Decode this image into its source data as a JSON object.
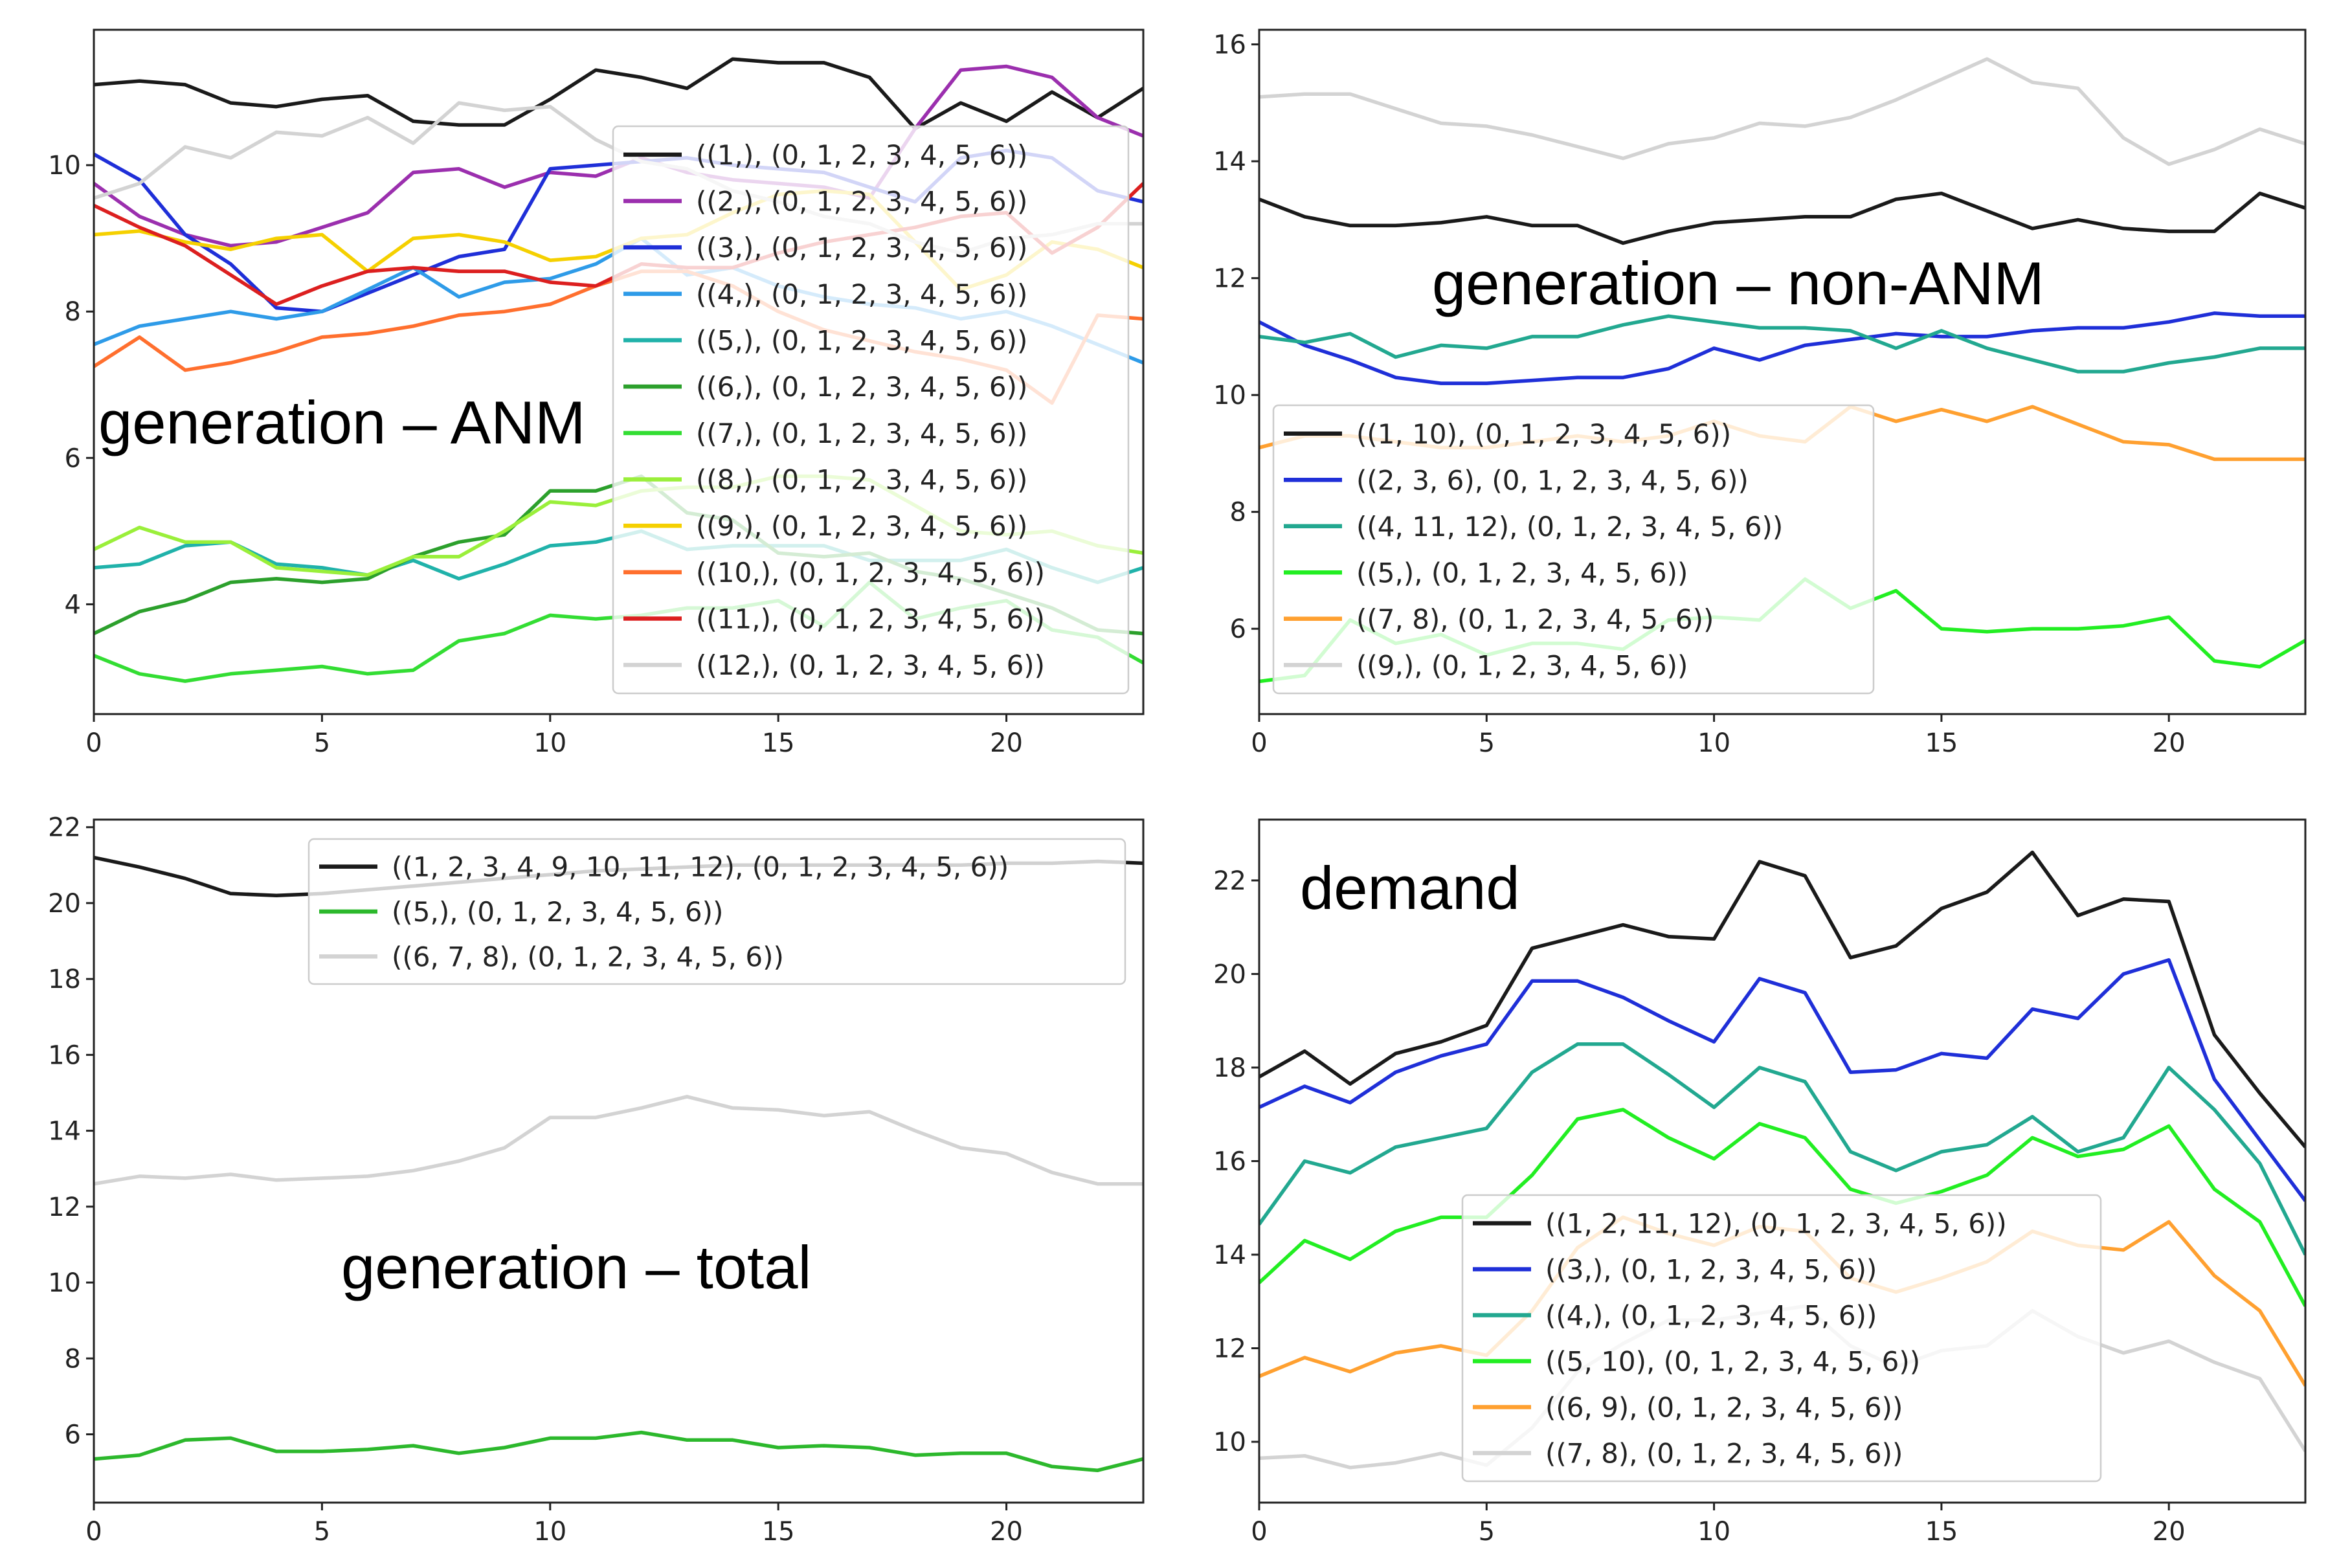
{
  "chart_data": [
    {
      "type": "line",
      "title": "",
      "annotation": "generation – ANM",
      "xlabel": "",
      "ylabel": "",
      "xlim": [
        0,
        23
      ],
      "ylim": [
        2.5,
        11.85
      ],
      "xticks": [
        0,
        5,
        10,
        15,
        20
      ],
      "yticks": [
        4,
        6,
        8,
        10
      ],
      "grid": false,
      "legend_placement": "right",
      "x": [
        0,
        1,
        2,
        3,
        4,
        5,
        6,
        7,
        8,
        9,
        10,
        11,
        12,
        13,
        14,
        15,
        16,
        17,
        18,
        19,
        20,
        21,
        22,
        23
      ],
      "series": [
        {
          "name": "((1,), (0, 1, 2, 3, 4, 5, 6))",
          "color": "#1a1a1a",
          "values": [
            11.1,
            11.15,
            11.1,
            10.85,
            10.8,
            10.9,
            10.95,
            10.6,
            10.55,
            10.55,
            10.9,
            11.3,
            11.2,
            11.05,
            11.45,
            11.4,
            11.4,
            11.2,
            10.5,
            10.85,
            10.6,
            11.0,
            10.65,
            11.05
          ]
        },
        {
          "name": "((2,), (0, 1, 2, 3, 4, 5, 6))",
          "color": "#9b2fae",
          "values": [
            9.75,
            9.3,
            9.05,
            8.9,
            8.95,
            9.15,
            9.35,
            9.9,
            9.95,
            9.7,
            9.9,
            9.85,
            10.1,
            9.9,
            9.8,
            9.75,
            9.7,
            9.55,
            10.5,
            11.3,
            11.35,
            11.2,
            10.65,
            10.4
          ]
        },
        {
          "name": "((3,), (0, 1, 2, 3, 4, 5, 6))",
          "color": "#1f2fd8",
          "values": [
            10.15,
            9.8,
            9.05,
            8.65,
            8.05,
            8.0,
            8.25,
            8.5,
            8.75,
            8.85,
            9.95,
            10.0,
            10.05,
            10.1,
            10.0,
            9.95,
            9.9,
            9.7,
            9.5,
            10.1,
            10.2,
            10.1,
            9.65,
            9.5
          ]
        },
        {
          "name": "((4,), (0, 1, 2, 3, 4, 5, 6))",
          "color": "#2e9be8",
          "values": [
            7.55,
            7.8,
            7.9,
            8.0,
            7.9,
            8.0,
            8.3,
            8.6,
            8.2,
            8.4,
            8.45,
            8.65,
            9.0,
            8.5,
            8.6,
            8.35,
            8.2,
            8.1,
            8.05,
            7.9,
            8.0,
            7.8,
            7.55,
            7.3
          ]
        },
        {
          "name": "((5,), (0, 1, 2, 3, 4, 5, 6))",
          "color": "#20b2aa",
          "values": [
            4.5,
            4.55,
            4.8,
            4.85,
            4.55,
            4.5,
            4.4,
            4.6,
            4.35,
            4.55,
            4.8,
            4.85,
            5.0,
            4.75,
            4.8,
            4.8,
            4.8,
            4.6,
            4.6,
            4.6,
            4.75,
            4.5,
            4.3,
            4.5
          ]
        },
        {
          "name": "((6,), (0, 1, 2, 3, 4, 5, 6))",
          "color": "#2ca02c",
          "values": [
            3.6,
            3.9,
            4.05,
            4.3,
            4.35,
            4.3,
            4.35,
            4.65,
            4.85,
            4.95,
            5.55,
            5.55,
            5.75,
            5.25,
            5.15,
            4.7,
            4.65,
            4.7,
            4.45,
            4.35,
            4.15,
            3.95,
            3.65,
            3.6
          ]
        },
        {
          "name": "((7,), (0, 1, 2, 3, 4, 5, 6))",
          "color": "#33dd33",
          "values": [
            3.3,
            3.05,
            2.95,
            3.05,
            3.1,
            3.15,
            3.05,
            3.1,
            3.5,
            3.6,
            3.85,
            3.8,
            3.85,
            3.95,
            3.95,
            4.05,
            3.7,
            4.3,
            3.8,
            3.95,
            4.05,
            3.65,
            3.55,
            3.2
          ]
        },
        {
          "name": "((8,), (0, 1, 2, 3, 4, 5, 6))",
          "color": "#9aef3a",
          "values": [
            4.75,
            5.05,
            4.85,
            4.85,
            4.5,
            4.45,
            4.4,
            4.65,
            4.65,
            5.0,
            5.4,
            5.35,
            5.55,
            5.6,
            5.6,
            5.75,
            5.75,
            5.7,
            5.35,
            5.0,
            4.95,
            5.0,
            4.8,
            4.7
          ]
        },
        {
          "name": "((9,), (0, 1, 2, 3, 4, 5, 6))",
          "color": "#f5d000",
          "values": [
            9.05,
            9.1,
            8.95,
            8.85,
            9.0,
            9.05,
            8.55,
            9.0,
            9.05,
            8.95,
            8.7,
            8.75,
            9.0,
            9.05,
            9.35,
            9.6,
            9.65,
            9.6,
            8.95,
            8.3,
            8.5,
            8.95,
            8.85,
            8.6
          ]
        },
        {
          "name": "((10,), (0, 1, 2, 3, 4, 5, 6))",
          "color": "#ff6f2e",
          "values": [
            7.25,
            7.65,
            7.2,
            7.3,
            7.45,
            7.65,
            7.7,
            7.8,
            7.95,
            8.0,
            8.1,
            8.35,
            8.55,
            8.55,
            8.35,
            8.0,
            7.75,
            7.6,
            7.45,
            7.35,
            7.2,
            6.75,
            7.95,
            7.9
          ]
        },
        {
          "name": "((11,), (0, 1, 2, 3, 4, 5, 6))",
          "color": "#dc1f1f",
          "values": [
            9.45,
            9.15,
            8.9,
            8.5,
            8.1,
            8.35,
            8.55,
            8.6,
            8.55,
            8.55,
            8.4,
            8.35,
            8.65,
            8.6,
            8.6,
            8.8,
            8.95,
            9.05,
            9.15,
            9.3,
            9.35,
            8.8,
            9.15,
            9.75
          ]
        },
        {
          "name": "((12,), (0, 1, 2, 3, 4, 5, 6))",
          "color": "#d3d3d3",
          "values": [
            9.55,
            9.75,
            10.25,
            10.1,
            10.45,
            10.4,
            10.65,
            10.3,
            10.85,
            10.75,
            10.8,
            10.35,
            10.05,
            9.95,
            9.65,
            9.5,
            9.3,
            9.2,
            8.95,
            8.8,
            9.0,
            9.05,
            9.2,
            9.2
          ]
        }
      ]
    },
    {
      "type": "line",
      "title": "",
      "annotation": "generation – non-ANM",
      "xlabel": "",
      "ylabel": "",
      "xlim": [
        0,
        23
      ],
      "ylim": [
        4.54,
        16.25
      ],
      "xticks": [
        0,
        5,
        10,
        15,
        20
      ],
      "yticks": [
        6,
        8,
        10,
        12,
        14,
        16
      ],
      "grid": false,
      "legend_placement": "lower-left",
      "x": [
        0,
        1,
        2,
        3,
        4,
        5,
        6,
        7,
        8,
        9,
        10,
        11,
        12,
        13,
        14,
        15,
        16,
        17,
        18,
        19,
        20,
        21,
        22,
        23
      ],
      "series": [
        {
          "name": "((1, 10), (0, 1, 2, 3, 4, 5, 6))",
          "color": "#1a1a1a",
          "values": [
            13.35,
            13.05,
            12.9,
            12.9,
            12.95,
            13.05,
            12.9,
            12.9,
            12.6,
            12.8,
            12.95,
            13.0,
            13.05,
            13.05,
            13.35,
            13.45,
            13.15,
            12.85,
            13.0,
            12.85,
            12.8,
            12.8,
            13.45,
            13.2
          ]
        },
        {
          "name": "((2, 3, 6), (0, 1, 2, 3, 4, 5, 6))",
          "color": "#1f2fd8",
          "values": [
            11.25,
            10.85,
            10.6,
            10.3,
            10.2,
            10.2,
            10.25,
            10.3,
            10.3,
            10.45,
            10.8,
            10.6,
            10.85,
            10.95,
            11.05,
            11.0,
            11.0,
            11.1,
            11.15,
            11.15,
            11.25,
            11.4,
            11.35,
            11.35
          ]
        },
        {
          "name": "((4, 11, 12), (0, 1, 2, 3, 4, 5, 6))",
          "color": "#22a890",
          "values": [
            11.0,
            10.9,
            11.05,
            10.65,
            10.85,
            10.8,
            11.0,
            11.0,
            11.2,
            11.35,
            11.25,
            11.15,
            11.15,
            11.1,
            10.8,
            11.1,
            10.8,
            10.6,
            10.4,
            10.4,
            10.55,
            10.65,
            10.8,
            10.8
          ]
        },
        {
          "name": "((5,), (0, 1, 2, 3, 4, 5, 6))",
          "color": "#22ee22",
          "values": [
            5.1,
            5.2,
            6.15,
            5.75,
            5.9,
            5.55,
            5.75,
            5.75,
            5.65,
            6.15,
            6.2,
            6.15,
            6.85,
            6.35,
            6.65,
            6.0,
            5.95,
            6.0,
            6.0,
            6.05,
            6.2,
            5.45,
            5.35,
            5.8
          ]
        },
        {
          "name": "((7, 8), (0, 1, 2, 3, 4, 5, 6))",
          "color": "#ffa030",
          "values": [
            9.1,
            9.3,
            9.3,
            9.2,
            9.1,
            9.1,
            9.2,
            9.3,
            9.2,
            9.3,
            9.55,
            9.3,
            9.2,
            9.8,
            9.55,
            9.75,
            9.55,
            9.8,
            9.5,
            9.2,
            9.15,
            8.9,
            8.9,
            8.9
          ]
        },
        {
          "name": "((9,), (0, 1, 2, 3, 4, 5, 6))",
          "color": "#d3d3d3",
          "values": [
            15.1,
            15.15,
            15.15,
            14.9,
            14.65,
            14.6,
            14.45,
            14.25,
            14.05,
            14.3,
            14.4,
            14.65,
            14.6,
            14.75,
            15.05,
            15.4,
            15.75,
            15.35,
            15.25,
            14.4,
            13.95,
            14.2,
            14.55,
            14.3
          ]
        }
      ]
    },
    {
      "type": "line",
      "title": "",
      "annotation": "generation – total",
      "xlabel": "",
      "ylabel": "",
      "xlim": [
        0,
        23
      ],
      "ylim": [
        4.2,
        22.2
      ],
      "xticks": [
        0,
        5,
        10,
        15,
        20
      ],
      "yticks": [
        6,
        8,
        10,
        12,
        14,
        16,
        18,
        20,
        22
      ],
      "grid": false,
      "legend_placement": "upper-right",
      "x": [
        0,
        1,
        2,
        3,
        4,
        5,
        6,
        7,
        8,
        9,
        10,
        11,
        12,
        13,
        14,
        15,
        16,
        17,
        18,
        19,
        20,
        21,
        22,
        23
      ],
      "series": [
        {
          "name": "((1, 2, 3, 4, 9, 10, 11, 12), (0, 1, 2, 3, 4, 5, 6))",
          "color": "#1a1a1a",
          "values": [
            21.2,
            20.95,
            20.65,
            20.25,
            20.2,
            20.25,
            20.35,
            20.45,
            20.55,
            20.65,
            20.75,
            20.85,
            20.9,
            20.95,
            21.0,
            21.0,
            21.0,
            21.0,
            21.0,
            21.0,
            21.05,
            21.05,
            21.1,
            21.05
          ]
        },
        {
          "name": "((5,), (0, 1, 2, 3, 4, 5, 6))",
          "color": "#2cb82c",
          "values": [
            5.35,
            5.45,
            5.85,
            5.9,
            5.55,
            5.55,
            5.6,
            5.7,
            5.5,
            5.65,
            5.9,
            5.9,
            6.05,
            5.85,
            5.85,
            5.65,
            5.7,
            5.65,
            5.45,
            5.5,
            5.5,
            5.15,
            5.05,
            5.35
          ]
        },
        {
          "name": "((6, 7, 8), (0, 1, 2, 3, 4, 5, 6))",
          "color": "#d3d3d3",
          "values": [
            12.6,
            12.8,
            12.75,
            12.85,
            12.7,
            12.75,
            12.8,
            12.95,
            13.2,
            13.55,
            14.35,
            14.35,
            14.6,
            14.9,
            14.6,
            14.55,
            14.4,
            14.5,
            14.0,
            13.55,
            13.4,
            12.9,
            12.6,
            12.6
          ]
        }
      ]
    },
    {
      "type": "line",
      "title": "",
      "annotation": "demand",
      "xlabel": "",
      "ylabel": "",
      "xlim": [
        0,
        23
      ],
      "ylim": [
        8.7,
        23.3
      ],
      "xticks": [
        0,
        5,
        10,
        15,
        20
      ],
      "yticks": [
        10,
        12,
        14,
        16,
        18,
        20,
        22
      ],
      "grid": false,
      "legend_placement": "lower-center",
      "x": [
        0,
        1,
        2,
        3,
        4,
        5,
        6,
        7,
        8,
        9,
        10,
        11,
        12,
        13,
        14,
        15,
        16,
        17,
        18,
        19,
        20,
        21,
        22,
        23
      ],
      "series": [
        {
          "name": "((1, 2, 11, 12), (0, 1, 2, 3, 4, 5, 6))",
          "color": "#1a1a1a",
          "values": [
            17.8,
            18.35,
            17.65,
            18.3,
            18.55,
            18.9,
            20.55,
            20.8,
            21.05,
            20.8,
            20.75,
            22.4,
            22.1,
            20.35,
            20.6,
            21.4,
            21.75,
            22.6,
            21.25,
            21.6,
            21.55,
            18.7,
            17.45,
            16.3
          ]
        },
        {
          "name": "((3,), (0, 1, 2, 3, 4, 5, 6))",
          "color": "#1f2fd8",
          "values": [
            17.15,
            17.6,
            17.25,
            17.9,
            18.25,
            18.5,
            19.85,
            19.85,
            19.5,
            19.0,
            18.55,
            19.9,
            19.6,
            17.9,
            17.95,
            18.3,
            18.2,
            19.25,
            19.05,
            20.0,
            20.3,
            17.75,
            16.45,
            15.15
          ]
        },
        {
          "name": "((4,), (0, 1, 2, 3, 4, 5, 6))",
          "color": "#22a890",
          "values": [
            14.65,
            16.0,
            15.75,
            16.3,
            16.5,
            16.7,
            17.9,
            18.5,
            18.5,
            17.85,
            17.15,
            18.0,
            17.7,
            16.2,
            15.8,
            16.2,
            16.35,
            16.95,
            16.2,
            16.5,
            18.0,
            17.1,
            15.95,
            14.0
          ]
        },
        {
          "name": "((5, 10), (0, 1, 2, 3, 4, 5, 6))",
          "color": "#22ee22",
          "values": [
            13.4,
            14.3,
            13.9,
            14.5,
            14.8,
            14.8,
            15.7,
            16.9,
            17.1,
            16.5,
            16.05,
            16.8,
            16.5,
            15.4,
            15.1,
            15.35,
            15.7,
            16.5,
            16.1,
            16.25,
            16.75,
            15.4,
            14.7,
            12.9
          ]
        },
        {
          "name": "((6, 9), (0, 1, 2, 3, 4, 5, 6))",
          "color": "#ffa030",
          "values": [
            11.4,
            11.8,
            11.5,
            11.9,
            12.05,
            11.85,
            12.8,
            14.15,
            14.8,
            14.45,
            14.2,
            14.6,
            14.5,
            13.5,
            13.2,
            13.5,
            13.85,
            14.5,
            14.2,
            14.1,
            14.7,
            13.55,
            12.8,
            11.2
          ]
        },
        {
          "name": "((7, 8), (0, 1, 2, 3, 4, 5, 6))",
          "color": "#d3d3d3",
          "values": [
            9.65,
            9.7,
            9.45,
            9.55,
            9.75,
            9.5,
            10.3,
            11.5,
            12.1,
            12.6,
            12.6,
            12.75,
            12.9,
            12.05,
            11.6,
            11.95,
            12.05,
            12.8,
            12.25,
            11.9,
            12.15,
            11.7,
            11.35,
            9.8
          ]
        }
      ]
    }
  ]
}
